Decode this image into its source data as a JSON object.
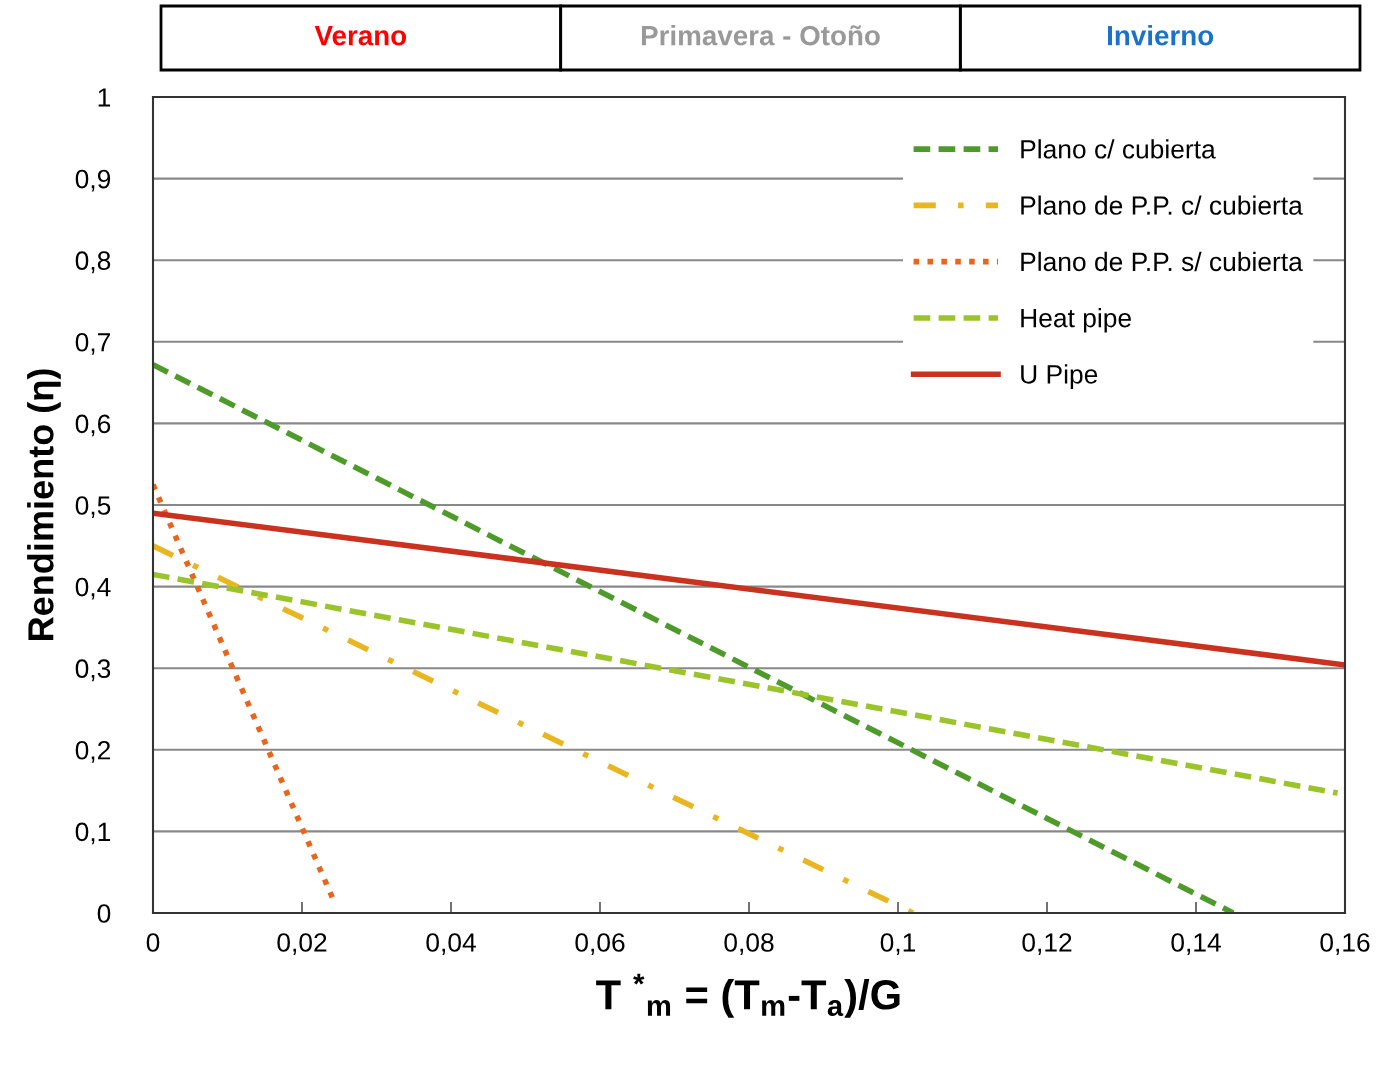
{
  "chart_data": {
    "type": "line",
    "xlabel": "T $^{*}$$_{m}$ = (T$_{m}$-T$_{a}$)/G",
    "ylabel": "Rendimiento (η)",
    "annotations": [
      "Verano",
      "Primavera - Otoño",
      "Invierno"
    ],
    "xlim": [
      0,
      0.16
    ],
    "ylim": [
      0,
      1
    ],
    "xticks": [
      0,
      {
        "value": 0.02,
        "label": "0,02"
      },
      {
        "value": 0.04,
        "label": "0,04"
      },
      {
        "value": 0.06,
        "label": "0,06"
      },
      {
        "value": 0.08,
        "label": "0,08"
      },
      {
        "value": 0.1,
        "label": "0,1"
      },
      {
        "value": 0.12,
        "label": "0,12"
      },
      {
        "value": 0.14,
        "label": "0,14"
      },
      {
        "value": 0.16,
        "label": "0,16"
      }
    ],
    "yticks": [
      0,
      {
        "value": 0.1,
        "label": "0,1"
      },
      {
        "value": 0.2,
        "label": "0,2"
      },
      {
        "value": 0.3,
        "label": "0,3"
      },
      {
        "value": 0.4,
        "label": "0,4"
      },
      {
        "value": 0.5,
        "label": "0,5"
      },
      {
        "value": 0.6,
        "label": "0,6"
      },
      {
        "value": 0.7,
        "label": "0,7"
      },
      {
        "value": 0.8,
        "label": "0,8"
      },
      {
        "value": 0.9,
        "label": "0,9"
      },
      1
    ],
    "grid": "y",
    "legend": "top right",
    "marker": "none",
    "series": [
      {
        "name": "Plano c/ cubierta",
        "color": "#4e9a2a",
        "line_style": "dashed",
        "x": [
          0,
          0.145
        ],
        "values": [
          0.672,
          0
        ]
      },
      {
        "name": "Plano de P.P. c/ cubierta",
        "color": "#e8b620",
        "line_style": "dashdot",
        "x": [
          0,
          0.102
        ],
        "values": [
          0.45,
          0
        ]
      },
      {
        "name": "Plano de P.P. s/ cubierta",
        "color": "#e8661c",
        "line_style": "dotted",
        "x": [
          0,
          0.0245
        ],
        "values": [
          0.525,
          0.01
        ]
      },
      {
        "name": "Heat pipe",
        "color": "#9bc42a",
        "line_style": "dashed",
        "x": [
          0,
          0.159
        ],
        "values": [
          0.415,
          0.147
        ]
      },
      {
        "name": "U Pipe",
        "color": "#c8321e",
        "line_style": "solid",
        "x": [
          0,
          0.16
        ],
        "values": [
          0.49,
          0.304
        ]
      }
    ]
  }
}
